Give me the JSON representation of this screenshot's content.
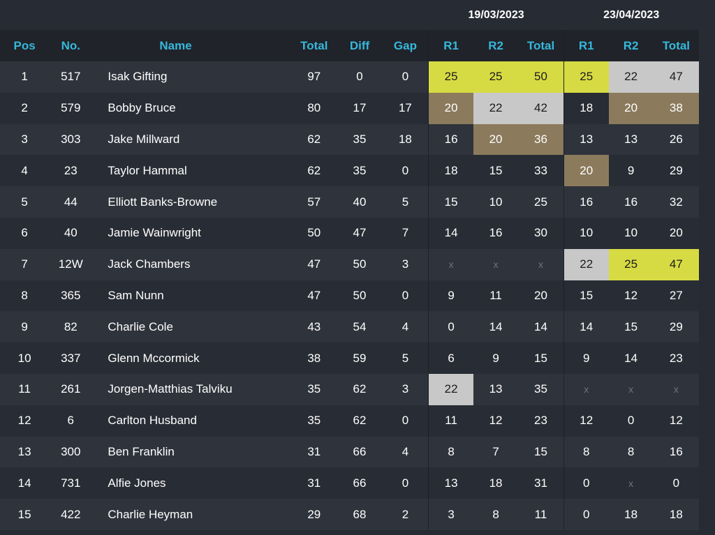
{
  "events": [
    {
      "date": "19/03/2023"
    },
    {
      "date": "23/04/2023"
    }
  ],
  "columns": {
    "pos": "Pos",
    "no": "No.",
    "name": "Name",
    "total": "Total",
    "diff": "Diff",
    "gap": "Gap",
    "e1_r1": "R1",
    "e1_r2": "R2",
    "e1_total": "Total",
    "e2_r1": "R1",
    "e2_r2": "R2",
    "e2_total": "Total"
  },
  "colors": {
    "gold": "#d7db43",
    "silver": "#c8c8c8",
    "bronze": "#8b7b5c",
    "header_text": "#36b8dc"
  },
  "rows": [
    {
      "pos": "1",
      "no": "517",
      "name": "Isak Gifting",
      "total": "97",
      "diff": "0",
      "gap": "0",
      "cells": [
        [
          "25",
          "gold"
        ],
        [
          "25",
          "gold"
        ],
        [
          "50",
          "gold"
        ],
        [
          "25",
          "gold"
        ],
        [
          "22",
          "silver"
        ],
        [
          "47",
          "silver"
        ]
      ]
    },
    {
      "pos": "2",
      "no": "579",
      "name": "Bobby Bruce",
      "total": "80",
      "diff": "17",
      "gap": "17",
      "cells": [
        [
          "20",
          "bronze"
        ],
        [
          "22",
          "silver"
        ],
        [
          "42",
          "silver"
        ],
        [
          "18",
          ""
        ],
        [
          "20",
          "bronze"
        ],
        [
          "38",
          "bronze"
        ]
      ]
    },
    {
      "pos": "3",
      "no": "303",
      "name": "Jake Millward",
      "total": "62",
      "diff": "35",
      "gap": "18",
      "cells": [
        [
          "16",
          ""
        ],
        [
          "20",
          "bronze"
        ],
        [
          "36",
          "bronze"
        ],
        [
          "13",
          ""
        ],
        [
          "13",
          ""
        ],
        [
          "26",
          ""
        ]
      ]
    },
    {
      "pos": "4",
      "no": "23",
      "name": "Taylor Hammal",
      "total": "62",
      "diff": "35",
      "gap": "0",
      "cells": [
        [
          "18",
          ""
        ],
        [
          "15",
          ""
        ],
        [
          "33",
          ""
        ],
        [
          "20",
          "bronze"
        ],
        [
          "9",
          ""
        ],
        [
          "29",
          ""
        ]
      ]
    },
    {
      "pos": "5",
      "no": "44",
      "name": "Elliott Banks-Browne",
      "total": "57",
      "diff": "40",
      "gap": "5",
      "cells": [
        [
          "15",
          ""
        ],
        [
          "10",
          ""
        ],
        [
          "25",
          ""
        ],
        [
          "16",
          ""
        ],
        [
          "16",
          ""
        ],
        [
          "32",
          ""
        ]
      ]
    },
    {
      "pos": "6",
      "no": "40",
      "name": "Jamie Wainwright",
      "total": "50",
      "diff": "47",
      "gap": "7",
      "cells": [
        [
          "14",
          ""
        ],
        [
          "16",
          ""
        ],
        [
          "30",
          ""
        ],
        [
          "10",
          ""
        ],
        [
          "10",
          ""
        ],
        [
          "20",
          ""
        ]
      ]
    },
    {
      "pos": "7",
      "no": "12W",
      "name": "Jack Chambers",
      "total": "47",
      "diff": "50",
      "gap": "3",
      "cells": [
        [
          "x",
          "x"
        ],
        [
          "x",
          "x"
        ],
        [
          "x",
          "x"
        ],
        [
          "22",
          "silver"
        ],
        [
          "25",
          "gold"
        ],
        [
          "47",
          "gold"
        ]
      ]
    },
    {
      "pos": "8",
      "no": "365",
      "name": "Sam Nunn",
      "total": "47",
      "diff": "50",
      "gap": "0",
      "cells": [
        [
          "9",
          ""
        ],
        [
          "11",
          ""
        ],
        [
          "20",
          ""
        ],
        [
          "15",
          ""
        ],
        [
          "12",
          ""
        ],
        [
          "27",
          ""
        ]
      ]
    },
    {
      "pos": "9",
      "no": "82",
      "name": "Charlie Cole",
      "total": "43",
      "diff": "54",
      "gap": "4",
      "cells": [
        [
          "0",
          ""
        ],
        [
          "14",
          ""
        ],
        [
          "14",
          ""
        ],
        [
          "14",
          ""
        ],
        [
          "15",
          ""
        ],
        [
          "29",
          ""
        ]
      ]
    },
    {
      "pos": "10",
      "no": "337",
      "name": "Glenn Mccormick",
      "total": "38",
      "diff": "59",
      "gap": "5",
      "cells": [
        [
          "6",
          ""
        ],
        [
          "9",
          ""
        ],
        [
          "15",
          ""
        ],
        [
          "9",
          ""
        ],
        [
          "14",
          ""
        ],
        [
          "23",
          ""
        ]
      ]
    },
    {
      "pos": "11",
      "no": "261",
      "name": "Jorgen-Matthias Talviku",
      "total": "35",
      "diff": "62",
      "gap": "3",
      "cells": [
        [
          "22",
          "silver"
        ],
        [
          "13",
          ""
        ],
        [
          "35",
          ""
        ],
        [
          "x",
          "x"
        ],
        [
          "x",
          "x"
        ],
        [
          "x",
          "x"
        ]
      ]
    },
    {
      "pos": "12",
      "no": "6",
      "name": "Carlton Husband",
      "total": "35",
      "diff": "62",
      "gap": "0",
      "cells": [
        [
          "11",
          ""
        ],
        [
          "12",
          ""
        ],
        [
          "23",
          ""
        ],
        [
          "12",
          ""
        ],
        [
          "0",
          ""
        ],
        [
          "12",
          ""
        ]
      ]
    },
    {
      "pos": "13",
      "no": "300",
      "name": "Ben Franklin",
      "total": "31",
      "diff": "66",
      "gap": "4",
      "cells": [
        [
          "8",
          ""
        ],
        [
          "7",
          ""
        ],
        [
          "15",
          ""
        ],
        [
          "8",
          ""
        ],
        [
          "8",
          ""
        ],
        [
          "16",
          ""
        ]
      ]
    },
    {
      "pos": "14",
      "no": "731",
      "name": "Alfie Jones",
      "total": "31",
      "diff": "66",
      "gap": "0",
      "cells": [
        [
          "13",
          ""
        ],
        [
          "18",
          ""
        ],
        [
          "31",
          ""
        ],
        [
          "0",
          ""
        ],
        [
          "x",
          "x"
        ],
        [
          "0",
          ""
        ]
      ]
    },
    {
      "pos": "15",
      "no": "422",
      "name": "Charlie Heyman",
      "total": "29",
      "diff": "68",
      "gap": "2",
      "cells": [
        [
          "3",
          ""
        ],
        [
          "8",
          ""
        ],
        [
          "11",
          ""
        ],
        [
          "0",
          ""
        ],
        [
          "18",
          ""
        ],
        [
          "18",
          ""
        ]
      ]
    }
  ]
}
